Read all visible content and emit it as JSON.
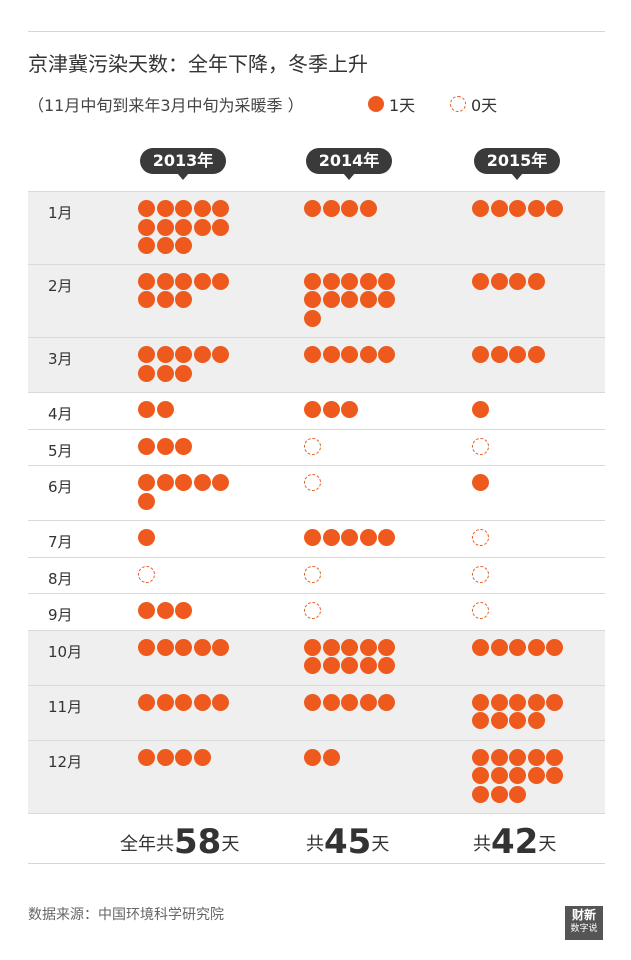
{
  "title": "京津冀污染天数：全年下降，冬季上升",
  "subtitle": "（11月中旬到来年3月中旬为采暖季 ）",
  "legend": {
    "filled_label": "1天",
    "empty_label": "0天",
    "color": "#ee5a1d"
  },
  "source": "数据来源：中国环境科学研究院",
  "logo": {
    "line1": "财新",
    "line2": "数字说"
  },
  "chart_data": {
    "type": "table",
    "unit": "天",
    "years": [
      "2013年",
      "2014年",
      "2015年"
    ],
    "months": [
      "1月",
      "2月",
      "3月",
      "4月",
      "5月",
      "6月",
      "7月",
      "8月",
      "9月",
      "10月",
      "11月",
      "12月"
    ],
    "series": [
      {
        "name": "2013年",
        "values": [
          13,
          8,
          8,
          2,
          3,
          6,
          1,
          0,
          3,
          5,
          5,
          4
        ]
      },
      {
        "name": "2014年",
        "values": [
          4,
          11,
          5,
          3,
          0,
          0,
          5,
          0,
          0,
          10,
          5,
          2
        ]
      },
      {
        "name": "2015年",
        "values": [
          5,
          4,
          4,
          1,
          0,
          1,
          0,
          0,
          0,
          5,
          9,
          13
        ]
      }
    ],
    "totals": [
      {
        "prefix": "全年共",
        "value": "58",
        "suffix": "天"
      },
      {
        "prefix": "共",
        "value": "45",
        "suffix": "天"
      },
      {
        "prefix": "共",
        "value": "42",
        "suffix": "天"
      }
    ]
  }
}
